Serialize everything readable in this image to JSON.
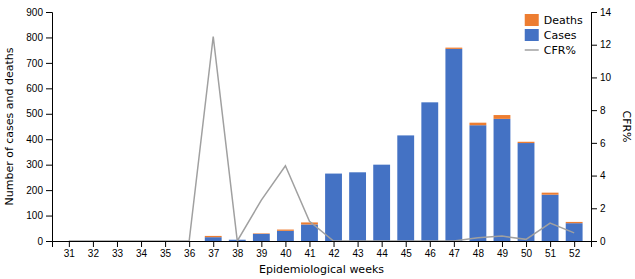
{
  "chart_data": {
    "type": "bar",
    "stacked": true,
    "x": [
      31,
      32,
      33,
      34,
      35,
      36,
      37,
      38,
      39,
      40,
      41,
      42,
      43,
      44,
      45,
      46,
      47,
      48,
      49,
      50,
      51,
      52
    ],
    "xlim": [
      30.3,
      52.7
    ],
    "xticks": [
      31,
      32,
      33,
      34,
      35,
      36,
      37,
      38,
      39,
      40,
      41,
      42,
      43,
      44,
      45,
      46,
      47,
      48,
      49,
      50,
      51,
      52
    ],
    "x_label": "Epidemiological weeks",
    "y_label": "Number of cases and deaths",
    "y2_label": "CFR%",
    "ylim": [
      0,
      900
    ],
    "yticks": [
      0,
      100,
      200,
      300,
      400,
      500,
      600,
      700,
      800,
      900
    ],
    "y2lim": [
      0,
      14
    ],
    "y2ticks": [
      0,
      2,
      4,
      6,
      8,
      10,
      12,
      14
    ],
    "legend": "upper right",
    "series": [
      {
        "name": "Cases",
        "color": "#4472c4",
        "values": [
          0,
          0,
          0,
          0,
          0,
          0,
          15,
          5,
          28,
          40,
          65,
          265,
          270,
          300,
          415,
          545,
          755,
          455,
          480,
          385,
          182,
          70
        ]
      },
      {
        "name": "Deaths",
        "color": "#ed7d31",
        "values": [
          0,
          0,
          0,
          0,
          0,
          0,
          5,
          0,
          2,
          5,
          8,
          0,
          0,
          0,
          0,
          0,
          5,
          10,
          15,
          5,
          8,
          5
        ]
      },
      {
        "name": "CFR%",
        "type": "line",
        "axis": "y2",
        "color": "#a0a0a0",
        "values": [
          0,
          0,
          0,
          0,
          0,
          0,
          12.5,
          0,
          2.5,
          4.6,
          1.2,
          0,
          0,
          0,
          0,
          0,
          0,
          0.2,
          0.3,
          0.1,
          1.1,
          0.5
        ]
      }
    ]
  }
}
